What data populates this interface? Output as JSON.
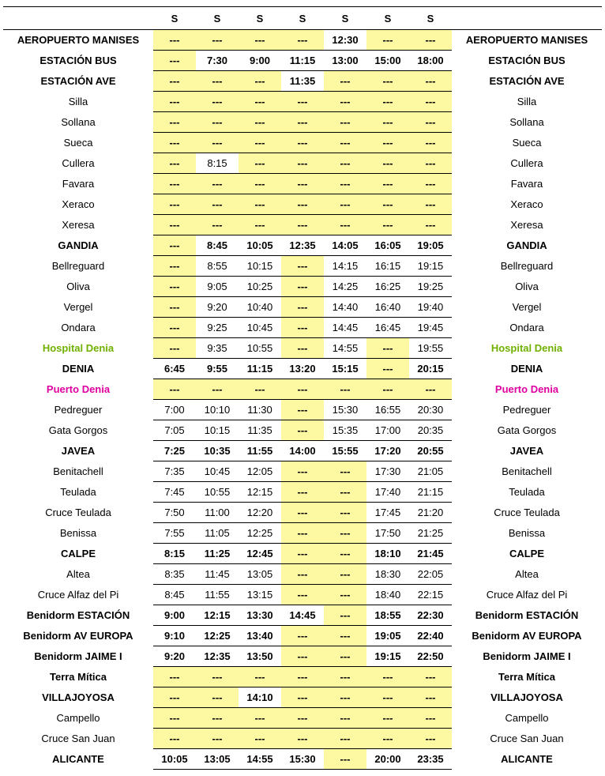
{
  "columns": [
    "S",
    "S",
    "S",
    "S",
    "S",
    "S",
    "S"
  ],
  "colors": {
    "yellow_bg": "#fdf9a3",
    "green_text": "#70b000",
    "pink_text": "#e000a0",
    "border": "#000000",
    "bg": "#ffffff"
  },
  "fontsizes": {
    "cell": 13
  },
  "dash": "---",
  "stops": [
    {
      "name": "AEROPUERTO MANISES",
      "style": "bold",
      "times": [
        null,
        null,
        null,
        null,
        "12:30",
        null,
        null
      ]
    },
    {
      "name": "ESTACIÓN BUS",
      "style": "bold",
      "times": [
        null,
        "7:30",
        "9:00",
        "11:15",
        "13:00",
        "15:00",
        "18:00"
      ]
    },
    {
      "name": "ESTACIÓN AVE",
      "style": "bold",
      "times": [
        null,
        null,
        null,
        "11:35",
        null,
        null,
        null
      ]
    },
    {
      "name": "Silla",
      "style": "",
      "times": [
        null,
        null,
        null,
        null,
        null,
        null,
        null
      ]
    },
    {
      "name": "Sollana",
      "style": "",
      "times": [
        null,
        null,
        null,
        null,
        null,
        null,
        null
      ]
    },
    {
      "name": "Sueca",
      "style": "",
      "times": [
        null,
        null,
        null,
        null,
        null,
        null,
        null
      ]
    },
    {
      "name": "Cullera",
      "style": "",
      "times": [
        null,
        "8:15",
        null,
        null,
        null,
        null,
        null
      ]
    },
    {
      "name": "Favara",
      "style": "",
      "times": [
        null,
        null,
        null,
        null,
        null,
        null,
        null
      ]
    },
    {
      "name": "Xeraco",
      "style": "",
      "times": [
        null,
        null,
        null,
        null,
        null,
        null,
        null
      ]
    },
    {
      "name": "Xeresa",
      "style": "",
      "times": [
        null,
        null,
        null,
        null,
        null,
        null,
        null
      ]
    },
    {
      "name": "GANDIA",
      "style": "bold",
      "times": [
        null,
        "8:45",
        "10:05",
        "12:35",
        "14:05",
        "16:05",
        "19:05"
      ]
    },
    {
      "name": "Bellreguard",
      "style": "",
      "times": [
        null,
        "8:55",
        "10:15",
        null,
        "14:15",
        "16:15",
        "19:15"
      ]
    },
    {
      "name": "Oliva",
      "style": "",
      "times": [
        null,
        "9:05",
        "10:25",
        null,
        "14:25",
        "16:25",
        "19:25"
      ]
    },
    {
      "name": "Vergel",
      "style": "",
      "times": [
        null,
        "9:20",
        "10:40",
        null,
        "14:40",
        "16:40",
        "19:40"
      ]
    },
    {
      "name": "Ondara",
      "style": "",
      "times": [
        null,
        "9:25",
        "10:45",
        null,
        "14:45",
        "16:45",
        "19:45"
      ]
    },
    {
      "name": "Hospital Denia",
      "style": "green",
      "times": [
        null,
        "9:35",
        "10:55",
        null,
        "14:55",
        null,
        "19:55"
      ]
    },
    {
      "name": "DENIA",
      "style": "bold",
      "times": [
        "6:45",
        "9:55",
        "11:15",
        "13:20",
        "15:15",
        null,
        "20:15"
      ]
    },
    {
      "name": "Puerto Denia",
      "style": "pink",
      "times": [
        null,
        null,
        null,
        null,
        null,
        null,
        null
      ]
    },
    {
      "name": "Pedreguer",
      "style": "",
      "times": [
        "7:00",
        "10:10",
        "11:30",
        null,
        "15:30",
        "16:55",
        "20:30"
      ]
    },
    {
      "name": "Gata Gorgos",
      "style": "",
      "times": [
        "7:05",
        "10:15",
        "11:35",
        null,
        "15:35",
        "17:00",
        "20:35"
      ]
    },
    {
      "name": "JAVEA",
      "style": "bold",
      "times": [
        "7:25",
        "10:35",
        "11:55",
        "14:00",
        "15:55",
        "17:20",
        "20:55"
      ]
    },
    {
      "name": "Benitachell",
      "style": "",
      "times": [
        "7:35",
        "10:45",
        "12:05",
        null,
        null,
        "17:30",
        "21:05"
      ]
    },
    {
      "name": "Teulada",
      "style": "",
      "times": [
        "7:45",
        "10:55",
        "12:15",
        null,
        null,
        "17:40",
        "21:15"
      ]
    },
    {
      "name": "Cruce Teulada",
      "style": "",
      "times": [
        "7:50",
        "11:00",
        "12:20",
        null,
        null,
        "17:45",
        "21:20"
      ]
    },
    {
      "name": "Benissa",
      "style": "",
      "times": [
        "7:55",
        "11:05",
        "12:25",
        null,
        null,
        "17:50",
        "21:25"
      ]
    },
    {
      "name": "CALPE",
      "style": "bold",
      "times": [
        "8:15",
        "11:25",
        "12:45",
        null,
        null,
        "18:10",
        "21:45"
      ]
    },
    {
      "name": "Altea",
      "style": "",
      "times": [
        "8:35",
        "11:45",
        "13:05",
        null,
        null,
        "18:30",
        "22:05"
      ]
    },
    {
      "name": "Cruce Alfaz del Pi",
      "style": "",
      "times": [
        "8:45",
        "11:55",
        "13:15",
        null,
        null,
        "18:40",
        "22:15"
      ]
    },
    {
      "name": "Benidorm ESTACIÓN",
      "style": "bold",
      "times": [
        "9:00",
        "12:15",
        "13:30",
        "14:45",
        null,
        "18:55",
        "22:30"
      ]
    },
    {
      "name": "Benidorm AV EUROPA",
      "style": "bold",
      "times": [
        "9:10",
        "12:25",
        "13:40",
        null,
        null,
        "19:05",
        "22:40"
      ]
    },
    {
      "name": "Benidorm JAIME I",
      "style": "bold",
      "times": [
        "9:20",
        "12:35",
        "13:50",
        null,
        null,
        "19:15",
        "22:50"
      ]
    },
    {
      "name": "Terra Mítica",
      "style": "bold",
      "times": [
        null,
        null,
        null,
        null,
        null,
        null,
        null
      ]
    },
    {
      "name": "VILLAJOYOSA",
      "style": "bold",
      "times": [
        null,
        null,
        "14:10",
        null,
        null,
        null,
        null
      ]
    },
    {
      "name": "Campello",
      "style": "",
      "times": [
        null,
        null,
        null,
        null,
        null,
        null,
        null
      ]
    },
    {
      "name": "Cruce San Juan",
      "style": "",
      "times": [
        null,
        null,
        null,
        null,
        null,
        null,
        null
      ]
    },
    {
      "name": "ALICANTE",
      "style": "bold",
      "times": [
        "10:05",
        "13:05",
        "14:55",
        "15:30",
        null,
        "20:00",
        "23:35"
      ]
    }
  ],
  "yellow_cells": {
    "0": [
      0,
      1,
      2,
      3,
      5,
      6
    ],
    "1": [
      0
    ],
    "2": [
      0,
      1,
      2,
      4,
      5,
      6
    ],
    "3": [
      0,
      1,
      2,
      3,
      4,
      5,
      6
    ],
    "4": [
      0,
      1,
      2,
      3,
      4,
      5,
      6
    ],
    "5": [
      0,
      1,
      2,
      3,
      4,
      5,
      6
    ],
    "6": [
      0,
      2,
      3,
      4,
      5,
      6
    ],
    "7": [
      0,
      1,
      2,
      3,
      4,
      5,
      6
    ],
    "8": [
      0,
      1,
      2,
      3,
      4,
      5,
      6
    ],
    "9": [
      0,
      1,
      2,
      3,
      4,
      5,
      6
    ],
    "10": [
      0
    ],
    "11": [
      0,
      3
    ],
    "12": [
      0,
      3
    ],
    "13": [
      0,
      3
    ],
    "14": [
      0,
      3
    ],
    "15": [
      0,
      3,
      5
    ],
    "16": [
      5
    ],
    "17": [
      0,
      1,
      2,
      3,
      4,
      5,
      6
    ],
    "18": [
      3
    ],
    "19": [
      3
    ],
    "20": [],
    "21": [
      3,
      4
    ],
    "22": [
      3,
      4
    ],
    "23": [
      3,
      4
    ],
    "24": [
      3,
      4
    ],
    "25": [
      3,
      4
    ],
    "26": [
      3,
      4
    ],
    "27": [
      3,
      4
    ],
    "28": [
      4
    ],
    "29": [
      3,
      4
    ],
    "30": [
      3,
      4
    ],
    "31": [
      0,
      1,
      2,
      3,
      4,
      5,
      6
    ],
    "32": [
      0,
      1,
      3,
      4,
      5,
      6
    ],
    "33": [
      0,
      1,
      2,
      3,
      4,
      5,
      6
    ],
    "34": [
      0,
      1,
      2,
      3,
      4,
      5,
      6
    ],
    "35": [
      4
    ]
  }
}
